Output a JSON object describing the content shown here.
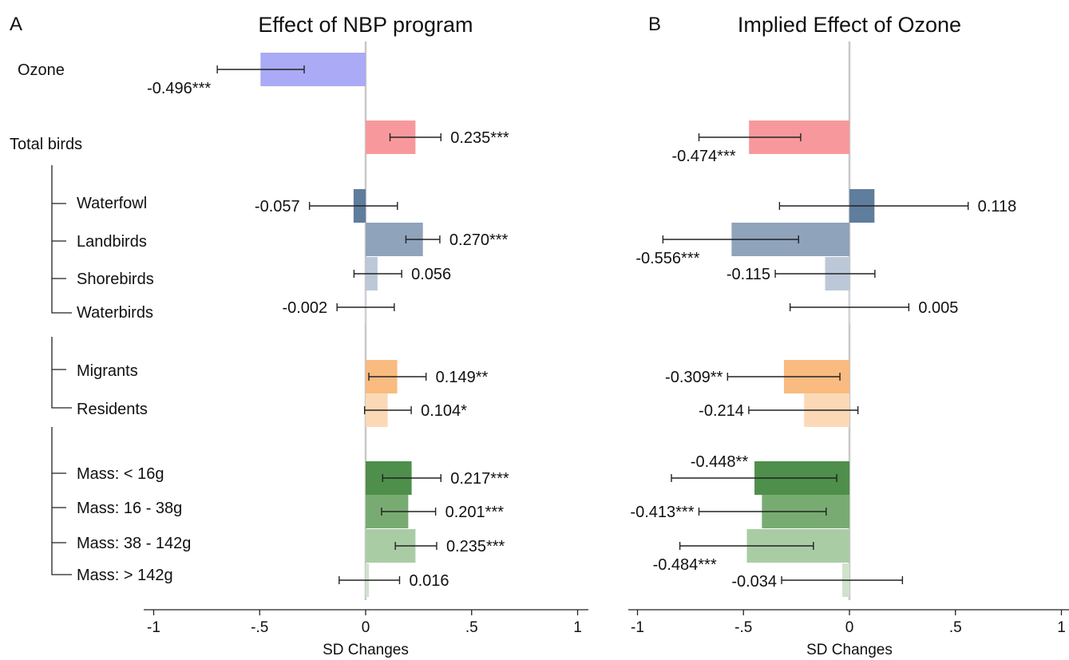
{
  "colors": {
    "ozone": "#aaaaf6",
    "total": "#f7999c",
    "waterfowl": "#5f7d9c",
    "landbirds": "#8fa3ba",
    "shorebirds": "#bcc8d8",
    "waterbirds": "#d9e1ec",
    "migrants": "#f9bb80",
    "residents": "#fcd9b6",
    "mass1": "#4e8f4b",
    "mass2": "#78ab72",
    "mass3": "#a9cca5",
    "mass4": "#cfe3cc",
    "zero_line": "#c8c8c8"
  },
  "chart_data": [
    {
      "type": "bar",
      "orientation": "horizontal",
      "panel": "A",
      "title": "Effect of NBP program",
      "xlabel": "SD Changes",
      "xlim": [
        -1,
        1
      ],
      "xticks": [
        -1,
        -0.5,
        0,
        0.5,
        1
      ],
      "xtick_labels": [
        "-1",
        "-.5",
        "0",
        ".5",
        "1"
      ],
      "grid": false,
      "categories": [
        "Ozone",
        "Total birds",
        "Waterfowl",
        "Landbirds",
        "Shorebirds",
        "Waterbirds",
        "Migrants",
        "Residents",
        "Mass: < 16g",
        "Mass: 16 - 38g",
        "Mass: 38 - 142g",
        "Mass: > 142g"
      ],
      "values": [
        -0.496,
        0.235,
        -0.057,
        0.27,
        0.056,
        -0.002,
        0.149,
        0.104,
        0.217,
        0.201,
        0.235,
        0.016
      ],
      "ci_low": [
        -0.7,
        0.115,
        -0.265,
        0.19,
        -0.055,
        -0.135,
        0.015,
        -0.005,
        0.08,
        0.075,
        0.14,
        -0.125
      ],
      "ci_high": [
        -0.29,
        0.355,
        0.15,
        0.35,
        0.17,
        0.135,
        0.285,
        0.215,
        0.355,
        0.33,
        0.335,
        0.16
      ],
      "value_labels": [
        "-0.496***",
        "0.235***",
        "-0.057",
        "0.270***",
        "0.056",
        "-0.002",
        "0.149**",
        "0.104*",
        "0.217***",
        "0.201***",
        "0.235***",
        "0.016"
      ]
    },
    {
      "type": "bar",
      "orientation": "horizontal",
      "panel": "B",
      "title": "Implied Effect of Ozone",
      "xlabel": "SD Changes",
      "xlim": [
        -1,
        1
      ],
      "xticks": [
        -1,
        -0.5,
        0,
        0.5,
        1
      ],
      "xtick_labels": [
        "-1",
        "-.5",
        "0",
        ".5",
        "1"
      ],
      "grid": false,
      "categories": [
        "Total birds",
        "Waterfowl",
        "Landbirds",
        "Shorebirds",
        "Waterbirds",
        "Migrants",
        "Residents",
        "Mass: < 16g",
        "Mass: 16 - 38g",
        "Mass: 38 - 142g",
        "Mass: > 142g"
      ],
      "values": [
        -0.474,
        0.118,
        -0.556,
        -0.115,
        0.005,
        -0.309,
        -0.214,
        -0.448,
        -0.413,
        -0.484,
        -0.034
      ],
      "ci_low": [
        -0.71,
        -0.33,
        -0.88,
        -0.35,
        -0.28,
        -0.575,
        -0.475,
        -0.84,
        -0.71,
        -0.8,
        -0.32
      ],
      "ci_high": [
        -0.23,
        0.56,
        -0.24,
        0.12,
        0.28,
        -0.045,
        0.04,
        -0.06,
        -0.11,
        -0.17,
        0.25
      ],
      "value_labels": [
        "-0.474***",
        "0.118",
        "-0.556***",
        "-0.115",
        "0.005",
        "-0.309**",
        "-0.214",
        "-0.448**",
        "-0.413***",
        "-0.484***",
        "-0.034"
      ]
    }
  ]
}
